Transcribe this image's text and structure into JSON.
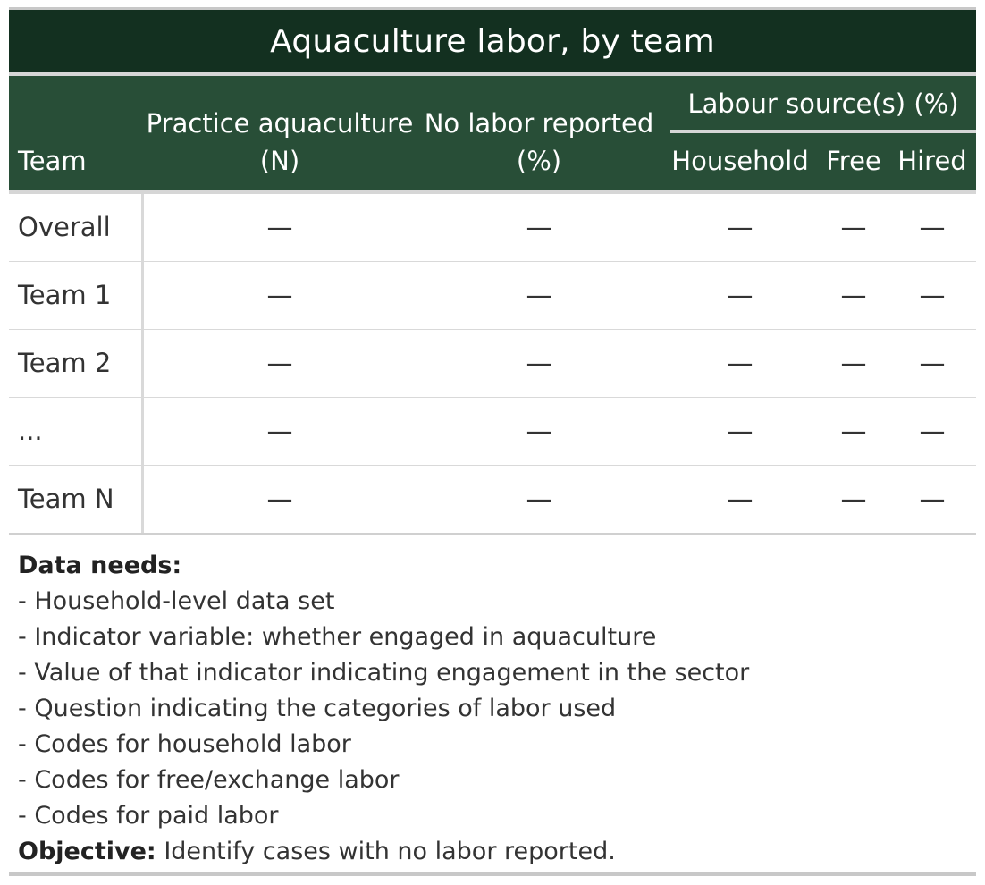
{
  "title": "Aquaculture labor, by team",
  "header": {
    "team": "Team",
    "practice_line1": "Practice aquaculture",
    "practice_line2": "(N)",
    "nolabor_line1": "No labor reported",
    "nolabor_line2": "(%)",
    "spanner": "Labour source(s) (%)",
    "household": "Household",
    "free": "Free",
    "hired": "Hired"
  },
  "rows": [
    {
      "team": "Overall",
      "practice": "—",
      "nolabor": "—",
      "household": "—",
      "free": "—",
      "hired": "—"
    },
    {
      "team": "Team 1",
      "practice": "—",
      "nolabor": "—",
      "household": "—",
      "free": "—",
      "hired": "—"
    },
    {
      "team": "Team 2",
      "practice": "—",
      "nolabor": "—",
      "household": "—",
      "free": "—",
      "hired": "—"
    },
    {
      "team": "...",
      "practice": "—",
      "nolabor": "—",
      "household": "—",
      "free": "—",
      "hired": "—"
    },
    {
      "team": "Team N",
      "practice": "—",
      "nolabor": "—",
      "household": "—",
      "free": "—",
      "hired": "—"
    }
  ],
  "notes": {
    "heading": "Data needs:",
    "items": [
      "- Household-level data set",
      "- Indicator variable: whether engaged in aquaculture",
      "- Value of that indicator indicating engagement in the sector",
      "- Question indicating the categories of labor used",
      "- Codes for household labor",
      "- Codes for free/exchange labor",
      "- Codes for paid labor"
    ],
    "objective_label": "Objective:",
    "objective_text": " Identify cases with no labor reported."
  },
  "colors": {
    "title_bg": "#133020",
    "header_bg": "#284e37",
    "rule": "#d6d6d6"
  }
}
